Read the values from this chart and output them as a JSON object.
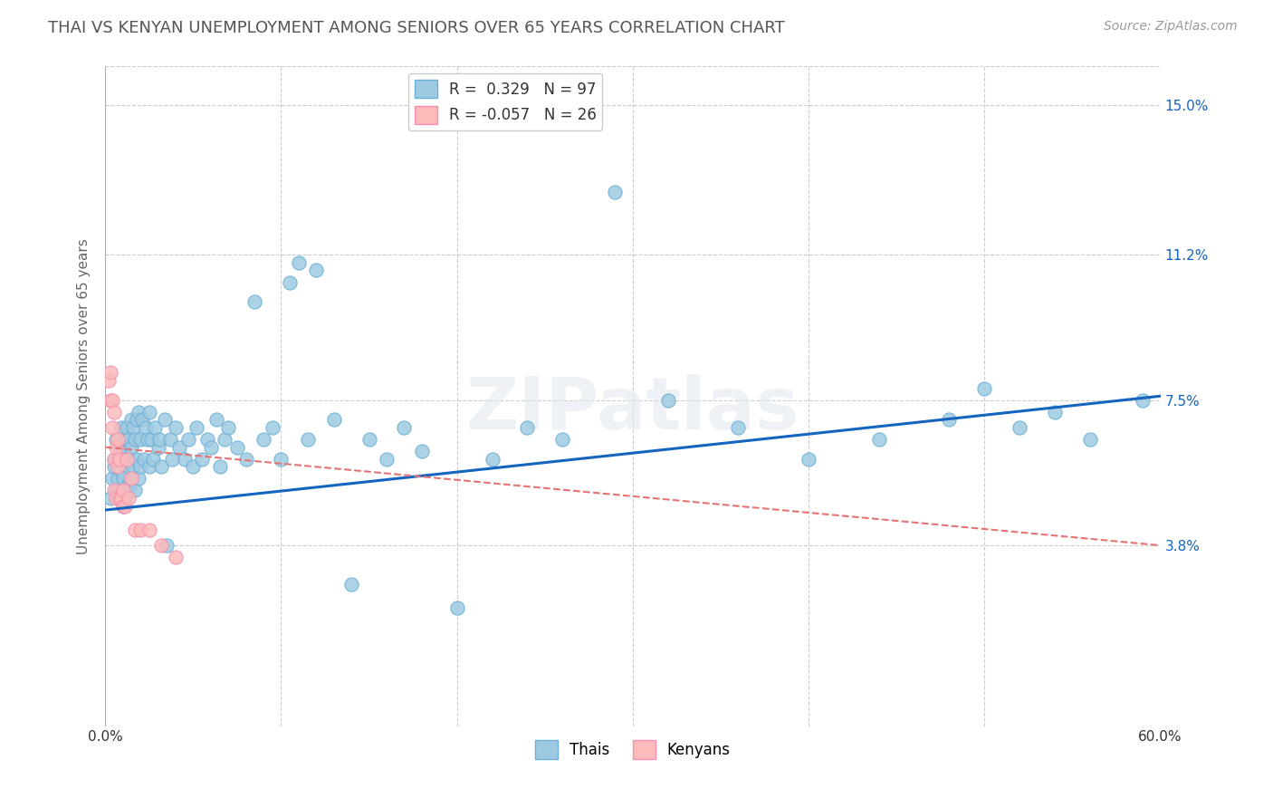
{
  "title": "THAI VS KENYAN UNEMPLOYMENT AMONG SENIORS OVER 65 YEARS CORRELATION CHART",
  "source": "Source: ZipAtlas.com",
  "ylabel": "Unemployment Among Seniors over 65 years",
  "xlim": [
    0.0,
    0.6
  ],
  "ylim": [
    -0.008,
    0.16
  ],
  "ytick_positions": [
    0.038,
    0.075,
    0.112,
    0.15
  ],
  "ytick_labels": [
    "3.8%",
    "7.5%",
    "11.2%",
    "15.0%"
  ],
  "thai_color": "#9ecae1",
  "thai_edge_color": "#6baed6",
  "kenyan_color": "#fcbaba",
  "kenyan_edge_color": "#f48fb1",
  "thai_line_color": "#1565c0",
  "kenyan_line_color": "#e57373",
  "thai_R": 0.329,
  "thai_N": 97,
  "kenyan_R": -0.057,
  "kenyan_N": 26,
  "watermark": "ZIPatlas",
  "background_color": "#ffffff",
  "grid_color": "#cccccc",
  "title_color": "#555555",
  "thai_x": [
    0.003,
    0.004,
    0.005,
    0.005,
    0.006,
    0.006,
    0.007,
    0.007,
    0.008,
    0.008,
    0.009,
    0.009,
    0.01,
    0.01,
    0.01,
    0.011,
    0.011,
    0.012,
    0.012,
    0.012,
    0.013,
    0.013,
    0.014,
    0.014,
    0.015,
    0.015,
    0.015,
    0.016,
    0.016,
    0.017,
    0.017,
    0.018,
    0.018,
    0.019,
    0.019,
    0.02,
    0.02,
    0.021,
    0.022,
    0.023,
    0.024,
    0.025,
    0.025,
    0.026,
    0.027,
    0.028,
    0.03,
    0.031,
    0.032,
    0.034,
    0.035,
    0.037,
    0.038,
    0.04,
    0.042,
    0.045,
    0.047,
    0.05,
    0.052,
    0.055,
    0.058,
    0.06,
    0.063,
    0.065,
    0.068,
    0.07,
    0.075,
    0.08,
    0.085,
    0.09,
    0.095,
    0.1,
    0.105,
    0.11,
    0.115,
    0.12,
    0.13,
    0.14,
    0.15,
    0.16,
    0.17,
    0.18,
    0.2,
    0.22,
    0.24,
    0.26,
    0.29,
    0.32,
    0.36,
    0.4,
    0.44,
    0.48,
    0.5,
    0.52,
    0.54,
    0.56,
    0.59
  ],
  "thai_y": [
    0.05,
    0.055,
    0.058,
    0.06,
    0.052,
    0.065,
    0.06,
    0.055,
    0.063,
    0.05,
    0.068,
    0.057,
    0.055,
    0.062,
    0.048,
    0.065,
    0.05,
    0.068,
    0.06,
    0.053,
    0.058,
    0.065,
    0.06,
    0.053,
    0.07,
    0.063,
    0.055,
    0.068,
    0.058,
    0.065,
    0.052,
    0.07,
    0.06,
    0.072,
    0.055,
    0.065,
    0.058,
    0.07,
    0.06,
    0.068,
    0.065,
    0.072,
    0.058,
    0.065,
    0.06,
    0.068,
    0.063,
    0.065,
    0.058,
    0.07,
    0.038,
    0.065,
    0.06,
    0.068,
    0.063,
    0.06,
    0.065,
    0.058,
    0.068,
    0.06,
    0.065,
    0.063,
    0.07,
    0.058,
    0.065,
    0.068,
    0.063,
    0.06,
    0.1,
    0.065,
    0.068,
    0.06,
    0.105,
    0.11,
    0.065,
    0.108,
    0.07,
    0.028,
    0.065,
    0.06,
    0.068,
    0.062,
    0.022,
    0.06,
    0.068,
    0.065,
    0.128,
    0.075,
    0.068,
    0.06,
    0.065,
    0.07,
    0.078,
    0.068,
    0.072,
    0.065,
    0.075
  ],
  "kenyan_x": [
    0.002,
    0.003,
    0.003,
    0.004,
    0.004,
    0.005,
    0.005,
    0.005,
    0.006,
    0.006,
    0.007,
    0.007,
    0.008,
    0.008,
    0.009,
    0.01,
    0.01,
    0.011,
    0.012,
    0.013,
    0.015,
    0.017,
    0.02,
    0.025,
    0.032,
    0.04
  ],
  "kenyan_y": [
    0.08,
    0.082,
    0.075,
    0.075,
    0.068,
    0.072,
    0.06,
    0.052,
    0.063,
    0.05,
    0.065,
    0.058,
    0.06,
    0.05,
    0.05,
    0.052,
    0.048,
    0.048,
    0.06,
    0.05,
    0.055,
    0.042,
    0.042,
    0.042,
    0.038,
    0.035
  ],
  "thai_line_x": [
    0.0,
    0.6
  ],
  "thai_line_y": [
    0.047,
    0.076
  ],
  "kenyan_line_x": [
    0.0,
    0.6
  ],
  "kenyan_line_y": [
    0.063,
    0.038
  ]
}
